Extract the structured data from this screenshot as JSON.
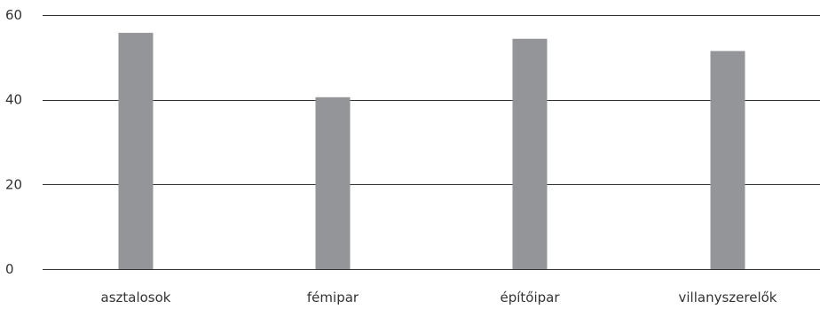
{
  "chart_data": {
    "type": "bar",
    "categories": [
      "asztalosok",
      "fémipar",
      "építőipar",
      "villanyszerelők"
    ],
    "values": [
      55.8,
      40.6,
      54.4,
      51.5
    ],
    "ylim": [
      0,
      60
    ],
    "yticks": [
      0,
      20,
      40,
      60
    ],
    "ytick_labels": [
      "0",
      "20",
      "40",
      "60"
    ],
    "grid": true,
    "legend": "none",
    "bar_color": "#939598",
    "grid_color": "#333333",
    "text_color": "#333333"
  }
}
